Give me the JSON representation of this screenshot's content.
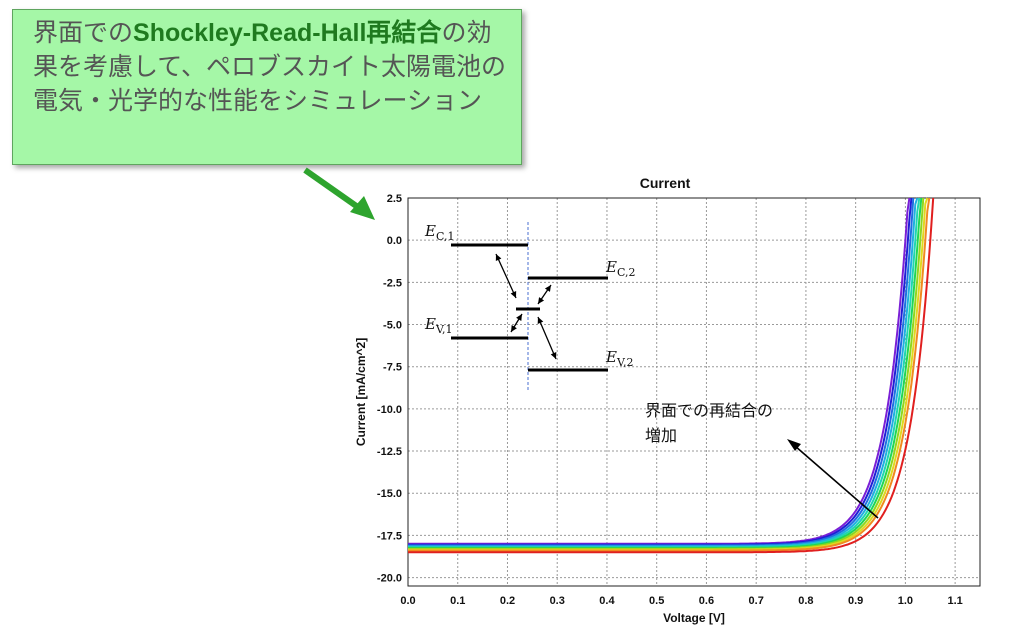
{
  "callout": {
    "pre": "界面での",
    "highlight": "Shockley-Read-Hall再結合",
    "post": "の効果を考慮して、ペロブスカイト太陽電池の電気・光学的な性能をシミュレーション"
  },
  "chart_data": {
    "type": "line",
    "title": "Current",
    "xlabel": "Voltage [V]",
    "ylabel": "Current [mA/cm^2]",
    "xlim": [
      0.0,
      1.15
    ],
    "ylim": [
      -20.5,
      2.5
    ],
    "xticks": [
      "0.0",
      "0.1",
      "0.2",
      "0.3",
      "0.4",
      "0.5",
      "0.6",
      "0.7",
      "0.8",
      "0.9",
      "1.0",
      "1.1"
    ],
    "yticks": [
      "2.5",
      "0.0",
      "-2.5",
      "-5.0",
      "-7.5",
      "-10.0",
      "-12.5",
      "-15.0",
      "-17.5",
      "-20.0"
    ],
    "grid": true,
    "series": [
      {
        "color": "#7a1fd6",
        "jsc": -18.0,
        "voc": 1.0
      },
      {
        "color": "#1f1fd6",
        "jsc": -18.05,
        "voc": 1.005
      },
      {
        "color": "#1f6fe0",
        "jsc": -18.1,
        "voc": 1.01
      },
      {
        "color": "#1fb0e0",
        "jsc": -18.15,
        "voc": 1.015
      },
      {
        "color": "#1fd6b0",
        "jsc": -18.2,
        "voc": 1.02
      },
      {
        "color": "#1fd655",
        "jsc": -18.25,
        "voc": 1.025
      },
      {
        "color": "#8fd61f",
        "jsc": -18.3,
        "voc": 1.03
      },
      {
        "color": "#e0d81f",
        "jsc": -18.35,
        "voc": 1.035
      },
      {
        "color": "#f08a1f",
        "jsc": -18.4,
        "voc": 1.04
      },
      {
        "color": "#e01f1f",
        "jsc": -18.5,
        "voc": 1.05
      }
    ],
    "inset": {
      "labels": {
        "ec1": "E",
        "ec1_sub": "C,1",
        "ec2": "E",
        "ec2_sub": "C,2",
        "ev1": "E",
        "ev1_sub": "V,1",
        "ev2": "E",
        "ev2_sub": "V,2"
      }
    },
    "annotation": {
      "line1": "界面での再結合の",
      "line2": "増加"
    }
  },
  "colors": {
    "callout_bg": "#a5f7a7",
    "arrow": "#2ea42e"
  }
}
